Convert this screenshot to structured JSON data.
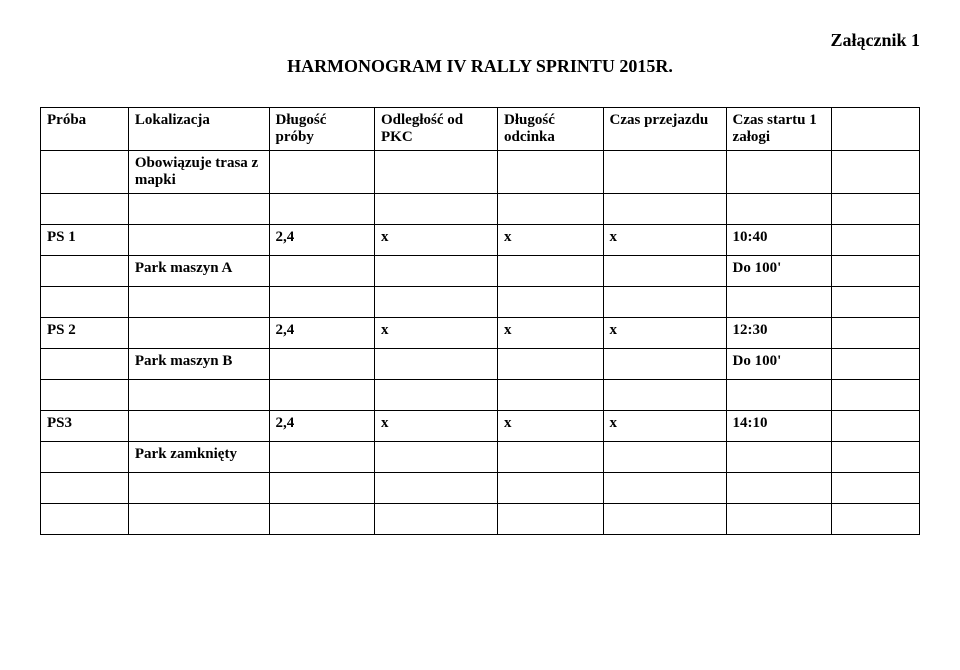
{
  "attachment": "Załącznik 1",
  "title": "HARMONOGRAM  IV RALLY SPRINTU 2015R.",
  "headers": {
    "col0": "Próba",
    "col1": "Lokalizacja",
    "col2": "Długość próby",
    "col3": "Odległość od PKC",
    "col4": "Długość odcinka",
    "col5": "Czas przejazdu",
    "col6": "Czas startu 1 załogi"
  },
  "header_sub": "Obowiązuje trasa z mapki",
  "ps1": {
    "label": "PS 1",
    "len": "2,4",
    "a": "x",
    "b": "x",
    "c": "x",
    "time": "10:40"
  },
  "ps1_park": {
    "label": "Park maszyn A",
    "note": "Do 100'"
  },
  "ps2": {
    "label": "PS 2",
    "len": "2,4",
    "a": "x",
    "b": "x",
    "c": "x",
    "time": "12:30"
  },
  "ps2_park": {
    "label": "Park maszyn B",
    "note": "Do 100'"
  },
  "ps3": {
    "label": "PS3",
    "len": "2,4",
    "a": "x",
    "b": "x",
    "c": "x",
    "time": "14:10"
  },
  "ps3_park": {
    "label": "Park zamknięty"
  }
}
